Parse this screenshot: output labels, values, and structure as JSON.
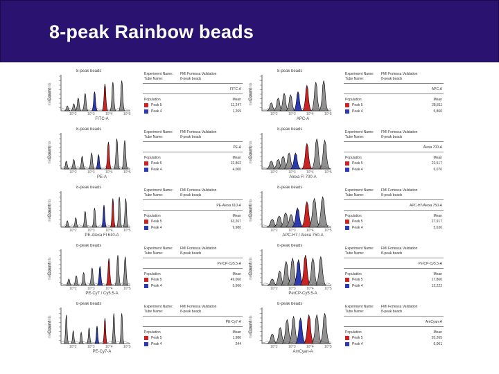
{
  "title": "8-peak Rainbow beads",
  "colors": {
    "title_bg": "#2a1370",
    "peak5": "#cc2222",
    "peak4": "#2b3ab0",
    "hist_fill": "#909090",
    "line": "#000000"
  },
  "common": {
    "hist_title_8": "8-peak beads",
    "ylabel": "Count",
    "ylabel_sub": "measurements",
    "exp_label": "Experiment Name:",
    "exp_value": "FMI Fortessa Validation",
    "tube_label": "Tube Name:",
    "tube_value": "8-peak beads",
    "pop_label": "Population",
    "stat_label": "Mean",
    "peak5_label": "Peak 5",
    "peak4_label": "Peak 4",
    "ticks": [
      "10^2",
      "10^3",
      "10^4",
      "10^5"
    ]
  },
  "panels": [
    {
      "title": "8-peak beads",
      "xlabel": "FITC-A",
      "param": "FITC-A",
      "peak5_value": "11,247",
      "peak4_value": "1,269",
      "peaks": [
        1,
        2.3,
        3.2,
        4.6,
        6.5,
        8.6,
        10.2,
        12.0
      ],
      "heights": [
        0.15,
        0.22,
        0.4,
        0.55,
        0.6,
        0.85,
        0.9,
        0.95
      ],
      "width": 0.25
    },
    {
      "title": "8-peak beads",
      "xlabel": "APC-A",
      "param": "APC-A",
      "peak5_value": "28,811",
      "peak4_value": "5,860",
      "peaks": [
        1.6,
        3.0,
        4.2,
        5.5,
        7.0,
        8.8,
        10.6,
        12.2
      ],
      "heights": [
        0.25,
        0.4,
        0.55,
        0.5,
        0.6,
        0.8,
        0.9,
        0.95
      ],
      "width": 0.4
    },
    {
      "title": "8-peak beads",
      "xlabel": "PE-A",
      "param": "PE-A",
      "peak5_value": "22,862",
      "peak4_value": "4,000",
      "peaks": [
        0.8,
        2.3,
        4.0,
        5.9,
        7.3,
        9.3,
        11.0,
        12.6
      ],
      "heights": [
        0.25,
        0.3,
        0.4,
        0.5,
        0.45,
        0.85,
        0.95,
        0.9
      ],
      "width": 0.25
    },
    {
      "title": "8-peak beads",
      "xlabel": "Alexa Fl 700-A",
      "param": "Alexa 700-A",
      "peak5_value": "22,517",
      "peak4_value": "6,070",
      "peaks": [
        1.6,
        3.0,
        4.0,
        5.2,
        6.5,
        8.8,
        10.8,
        12.4
      ],
      "heights": [
        0.25,
        0.3,
        0.4,
        0.5,
        0.5,
        0.8,
        0.95,
        0.9
      ],
      "width": 0.45
    },
    {
      "title": "8-peak beads",
      "xlabel": "PE-Alexa Fl 610-A",
      "param": "PE-Alexa 610-A",
      "peak5_value": "63,267",
      "peak4_value": "9,980",
      "peaks": [
        1.0,
        2.7,
        4.6,
        6.5,
        8.4,
        10.2,
        11.5,
        12.8
      ],
      "heights": [
        0.2,
        0.3,
        0.5,
        0.6,
        0.7,
        0.9,
        0.95,
        0.9
      ],
      "width": 0.22
    },
    {
      "title": "8-peak beads",
      "xlabel": "APC-H7 / Alexa 750-A",
      "param": "APC-H7/Alexa 750-A",
      "peak5_value": "27,917",
      "peak4_value": "5,630",
      "peaks": [
        1.8,
        3.2,
        4.5,
        5.6,
        6.9,
        8.8,
        10.3,
        12.0
      ],
      "heights": [
        0.25,
        0.35,
        0.45,
        0.4,
        0.6,
        0.8,
        0.9,
        0.95
      ],
      "width": 0.5
    },
    {
      "title": "8-peak beads",
      "xlabel": "PE-Cy7 / Cy5.5-A",
      "param": "PerCP-Cy5.5-A",
      "peak5_value": "49,060",
      "peak4_value": "5,666",
      "peaks": [
        1.3,
        2.8,
        4.3,
        6.0,
        7.6,
        9.4,
        11.2,
        12.7
      ],
      "heights": [
        0.2,
        0.3,
        0.4,
        0.55,
        0.6,
        0.85,
        0.95,
        0.9
      ],
      "width": 0.25
    },
    {
      "title": "8-peak beads",
      "xlabel": "PerCP-Cy5.5-A",
      "param": "PerCP-Cy5.5-A",
      "peak5_value": "17,860",
      "peak4_value": "12,222",
      "peaks": [
        1.8,
        3.3,
        4.6,
        5.9,
        7.1,
        8.5,
        10.0,
        11.6
      ],
      "heights": [
        0.2,
        0.45,
        0.75,
        0.85,
        0.8,
        0.95,
        0.85,
        0.9
      ],
      "width": 0.45
    },
    {
      "title": "8-peak beads",
      "xlabel": "PE-Cy7-A",
      "param": "PE-Cy7-A",
      "peak5_value": "1,980",
      "peak4_value": "244",
      "peaks": [
        0.8,
        2.2,
        3.8,
        5.4,
        7.0,
        8.6,
        10.4,
        12.0
      ],
      "heights": [
        0.9,
        0.4,
        0.35,
        0.5,
        0.55,
        0.8,
        0.95,
        0.95
      ],
      "width": 0.2
    },
    {
      "title": "8-peak beads",
      "xlabel": "AmCyan-A",
      "param": "AmCyan-A",
      "peak5_value": "20,265",
      "peak4_value": "6,001",
      "peaks": [
        1.8,
        3.4,
        4.8,
        6.1,
        7.5,
        9.2,
        10.8,
        12.4
      ],
      "heights": [
        0.3,
        0.5,
        0.75,
        0.85,
        0.8,
        0.9,
        0.9,
        0.95
      ],
      "width": 0.45
    }
  ]
}
